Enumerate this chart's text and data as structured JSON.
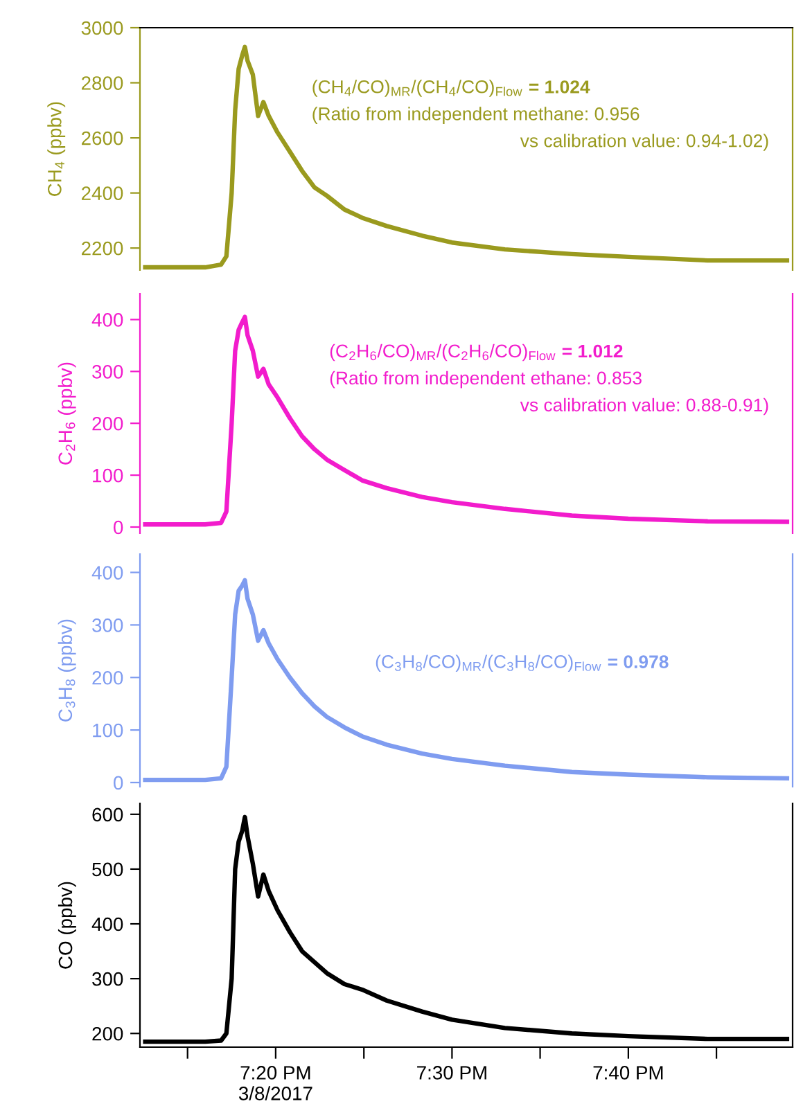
{
  "chart_data": [
    {
      "type": "line",
      "ylabel": "CH$_{4}$ (ppbv)",
      "xlim": [
        19.205,
        19.822
      ],
      "ylim": [
        2120,
        3000
      ],
      "yticks": [
        2200,
        2400,
        2600,
        2800,
        3000
      ],
      "tick_labels": "y",
      "x": [
        19.21,
        19.2333,
        19.2667,
        19.2817,
        19.2867,
        19.2917,
        19.295,
        19.2983,
        19.3017,
        19.3042,
        19.3067,
        19.3117,
        19.3167,
        19.3217,
        19.3267,
        19.335,
        19.3467,
        19.3583,
        19.37,
        19.3817,
        19.3983,
        19.415,
        19.4383,
        19.4717,
        19.5,
        19.55,
        19.6133,
        19.6667,
        19.7417,
        19.8167
      ],
      "series": [
        {
          "color": "#9a9a1e",
          "values": [
            2130,
            2130,
            2130,
            2140,
            2170,
            2400,
            2700,
            2850,
            2900,
            2930,
            2880,
            2830,
            2680,
            2730,
            2680,
            2620,
            2550,
            2480,
            2420,
            2390,
            2340,
            2310,
            2280,
            2245,
            2220,
            2195,
            2178,
            2168,
            2155,
            2155
          ]
        }
      ],
      "annotations": [
        "(CH$_{4}$/CO)$_{MR}$/(CH$_{4}$/CO)$_{Flow}$",
        "= 1.024",
        "(Ratio from independent methane: 0.956",
        "vs calibration value: 0.94-1.02)"
      ]
    },
    {
      "type": "line",
      "ylabel": "C$_{2}$H$_{6}$ (ppbv)",
      "xlim": [
        19.205,
        19.822
      ],
      "ylim": [
        -12,
        450
      ],
      "yticks": [
        0,
        100,
        200,
        300,
        400
      ],
      "tick_labels": "y",
      "x": [
        19.21,
        19.2333,
        19.2667,
        19.2817,
        19.2867,
        19.2917,
        19.295,
        19.2983,
        19.3017,
        19.3042,
        19.3067,
        19.3117,
        19.3167,
        19.3217,
        19.3267,
        19.335,
        19.3467,
        19.3583,
        19.37,
        19.3817,
        19.3983,
        19.415,
        19.4383,
        19.4717,
        19.5,
        19.55,
        19.6133,
        19.6667,
        19.7417,
        19.8167
      ],
      "series": [
        {
          "color": "#f21ccc",
          "values": [
            5,
            5,
            5,
            8,
            30,
            200,
            340,
            380,
            395,
            405,
            370,
            340,
            290,
            305,
            275,
            250,
            210,
            175,
            150,
            130,
            110,
            90,
            75,
            58,
            48,
            35,
            22,
            16,
            11,
            10
          ]
        }
      ],
      "annotations": [
        "(C$_{2}$H$_{6}$/CO)$_{MR}$/(C$_{2}$H$_{6}$/CO)$_{Flow}$",
        "= 1.012",
        "(Ratio from independent ethane: 0.853",
        "vs calibration value: 0.88-0.91)"
      ]
    },
    {
      "type": "line",
      "ylabel": "C$_{3}$H$_{8}$ (ppbv)",
      "xlim": [
        19.205,
        19.822
      ],
      "ylim": [
        -8,
        435
      ],
      "yticks": [
        0,
        100,
        200,
        300,
        400
      ],
      "tick_labels": "y",
      "x": [
        19.21,
        19.2333,
        19.2667,
        19.2817,
        19.2867,
        19.2917,
        19.295,
        19.2983,
        19.3017,
        19.3042,
        19.3067,
        19.3117,
        19.3167,
        19.3217,
        19.3267,
        19.335,
        19.3467,
        19.3583,
        19.37,
        19.3817,
        19.3983,
        19.415,
        19.4383,
        19.4717,
        19.5,
        19.55,
        19.6133,
        19.6667,
        19.7417,
        19.8167
      ],
      "series": [
        {
          "color": "#7f9cf0",
          "values": [
            5,
            5,
            5,
            8,
            30,
            200,
            320,
            365,
            375,
            385,
            350,
            320,
            270,
            290,
            265,
            235,
            200,
            170,
            145,
            125,
            105,
            88,
            72,
            55,
            45,
            32,
            20,
            15,
            10,
            8
          ]
        }
      ],
      "annotations": [
        "(C$_{3}$H$_{8}$/CO)$_{MR}$/(C$_{3}$H$_{8}$/CO)$_{Flow}$",
        "= 0.978"
      ]
    },
    {
      "type": "line",
      "ylabel": "CO (ppbv)",
      "xlim": [
        19.205,
        19.822
      ],
      "xticks": [
        {
          "value": 19.25,
          "label": null
        },
        {
          "value": 19.3333,
          "label": "7:20 PM\n3/8/2017"
        },
        {
          "value": 19.4167,
          "label": null
        },
        {
          "value": 19.5,
          "label": "7:30 PM"
        },
        {
          "value": 19.5833,
          "label": null
        },
        {
          "value": 19.6667,
          "label": "7:40 PM"
        },
        {
          "value": 19.75,
          "label": null
        }
      ],
      "ylim": [
        175,
        620
      ],
      "yticks": [
        200,
        300,
        400,
        500,
        600
      ],
      "x": [
        19.21,
        19.2333,
        19.2667,
        19.2817,
        19.2867,
        19.2917,
        19.295,
        19.2983,
        19.3017,
        19.3042,
        19.3067,
        19.3117,
        19.3167,
        19.3217,
        19.3267,
        19.335,
        19.3467,
        19.3583,
        19.37,
        19.3817,
        19.3983,
        19.415,
        19.4383,
        19.4717,
        19.5,
        19.55,
        19.6133,
        19.6667,
        19.7417,
        19.8167
      ],
      "series": [
        {
          "color": "#000000",
          "values": [
            185,
            185,
            185,
            187,
            200,
            300,
            500,
            550,
            570,
            595,
            560,
            510,
            450,
            490,
            460,
            425,
            385,
            350,
            330,
            310,
            290,
            280,
            260,
            240,
            225,
            210,
            200,
            195,
            190,
            190
          ]
        }
      ]
    }
  ]
}
